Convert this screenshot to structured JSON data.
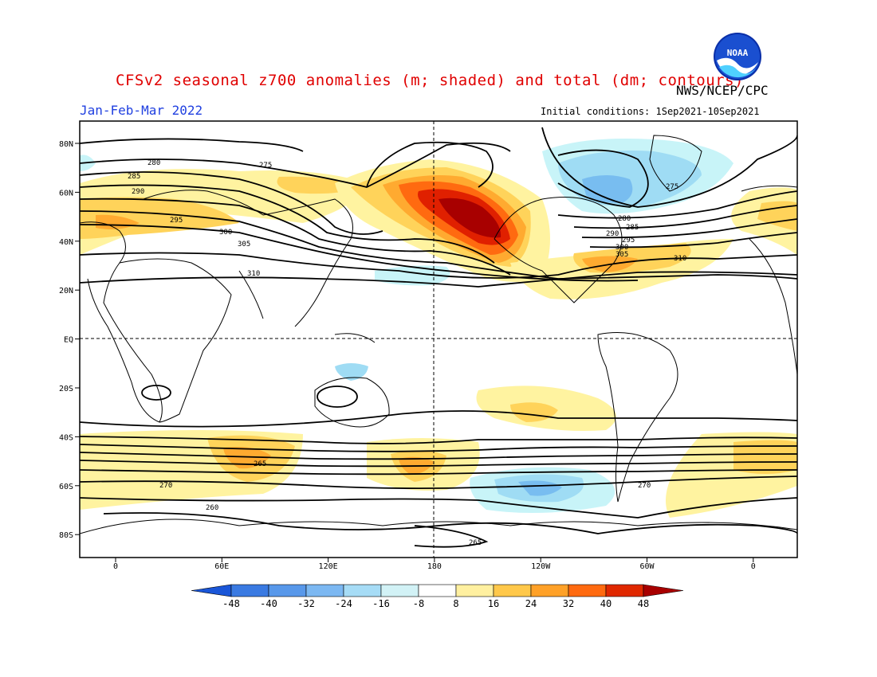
{
  "header": {
    "title": "CFSv2 seasonal z700 anomalies (m; shaded) and total (dm; contours)",
    "org": "NWS/NCEP/CPC",
    "period": "Jan-Feb-Mar 2022",
    "initial_conditions": "Initial conditions: 1Sep2021-10Sep2021",
    "logo_text": "NOAA"
  },
  "map": {
    "projection": "cylindrical equidistant",
    "lat_ticks": [
      "80N",
      "60N",
      "40N",
      "20N",
      "EQ",
      "20S",
      "40S",
      "60S",
      "80S"
    ],
    "lon_ticks": [
      "0",
      "60E",
      "120E",
      "180",
      "120W",
      "60W",
      "0"
    ],
    "contour_labels": [
      "280",
      "275",
      "285",
      "290",
      "295",
      "300",
      "305",
      "310",
      "270",
      "265",
      "260",
      "280",
      "285",
      "290",
      "295",
      "300",
      "305",
      "310",
      "275",
      "270",
      "265"
    ],
    "colors": {
      "pos": [
        "#fff3a0",
        "#ffd35a",
        "#ffaa30",
        "#ff6a10",
        "#e02000",
        "#a80000"
      ],
      "neg": [
        "#c8f4f8",
        "#9fdcf4",
        "#78bdf0",
        "#4f9be8",
        "#2a78dc",
        "#1050c8"
      ]
    }
  },
  "colorbar": {
    "labels": [
      "-48",
      "-40",
      "-32",
      "-24",
      "-16",
      "-8",
      "8",
      "16",
      "24",
      "32",
      "40",
      "48"
    ],
    "colors": [
      "#1a56d8",
      "#3a7ae2",
      "#5898ea",
      "#7cb8f2",
      "#a6dcf6",
      "#d2f2f6",
      "#ffffff",
      "#fff0a0",
      "#ffc84a",
      "#ffa128",
      "#ff6a10",
      "#e02800",
      "#a80000"
    ]
  }
}
